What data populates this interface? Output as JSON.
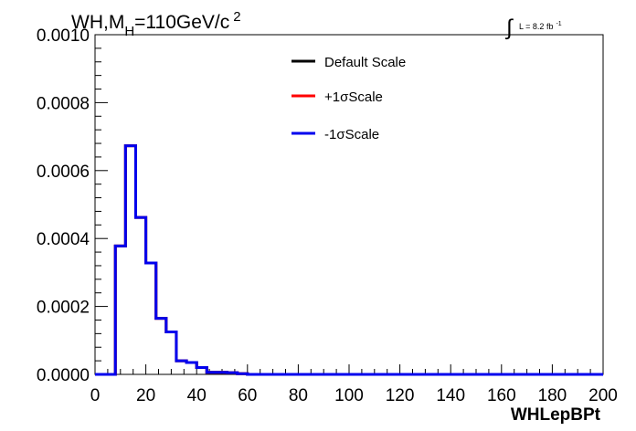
{
  "chart_data": {
    "type": "line",
    "title_main": "WH,M",
    "title_sub": "H",
    "title_rest": "=110GeV/c",
    "title_sup": "2",
    "lumi_text": "L = 8.2 fb",
    "lumi_sup": "-1",
    "xlabel": "WHLepBPt",
    "ylabel": "",
    "xlim": [
      0,
      200
    ],
    "ylim": [
      0,
      0.001
    ],
    "x_ticks": [
      "0",
      "20",
      "40",
      "60",
      "80",
      "100",
      "120",
      "140",
      "160",
      "180",
      "200"
    ],
    "y_ticks": [
      "0.0000",
      "0.0002",
      "0.0004",
      "0.0006",
      "0.0008",
      "0.0010"
    ],
    "legend_position": "top-center",
    "bin_edges": [
      0,
      4,
      8,
      12,
      16,
      20,
      24,
      28,
      32,
      36,
      40,
      44,
      48,
      52,
      56,
      60,
      200
    ],
    "series": [
      {
        "name": "Default Scale",
        "color": "#000000",
        "values": [
          0,
          0,
          0.000378,
          0.000673,
          0.000462,
          0.000328,
          0.000165,
          0.000125,
          4e-05,
          3.5e-05,
          2e-05,
          6e-06,
          6e-06,
          5e-06,
          2e-06,
          0
        ]
      },
      {
        "name": "+1σScale",
        "color": "#ff0000",
        "values": [
          0,
          0,
          0.000378,
          0.000673,
          0.000462,
          0.000328,
          0.000165,
          0.000125,
          4e-05,
          3.5e-05,
          2e-05,
          6e-06,
          6e-06,
          5e-06,
          2e-06,
          0
        ]
      },
      {
        "name": "-1σScale",
        "color": "#0000ee",
        "values": [
          0,
          0,
          0.000378,
          0.000673,
          0.000462,
          0.000328,
          0.000165,
          0.000125,
          4e-05,
          3.5e-05,
          2e-05,
          6e-06,
          6e-06,
          5e-06,
          2e-06,
          0
        ]
      }
    ]
  }
}
